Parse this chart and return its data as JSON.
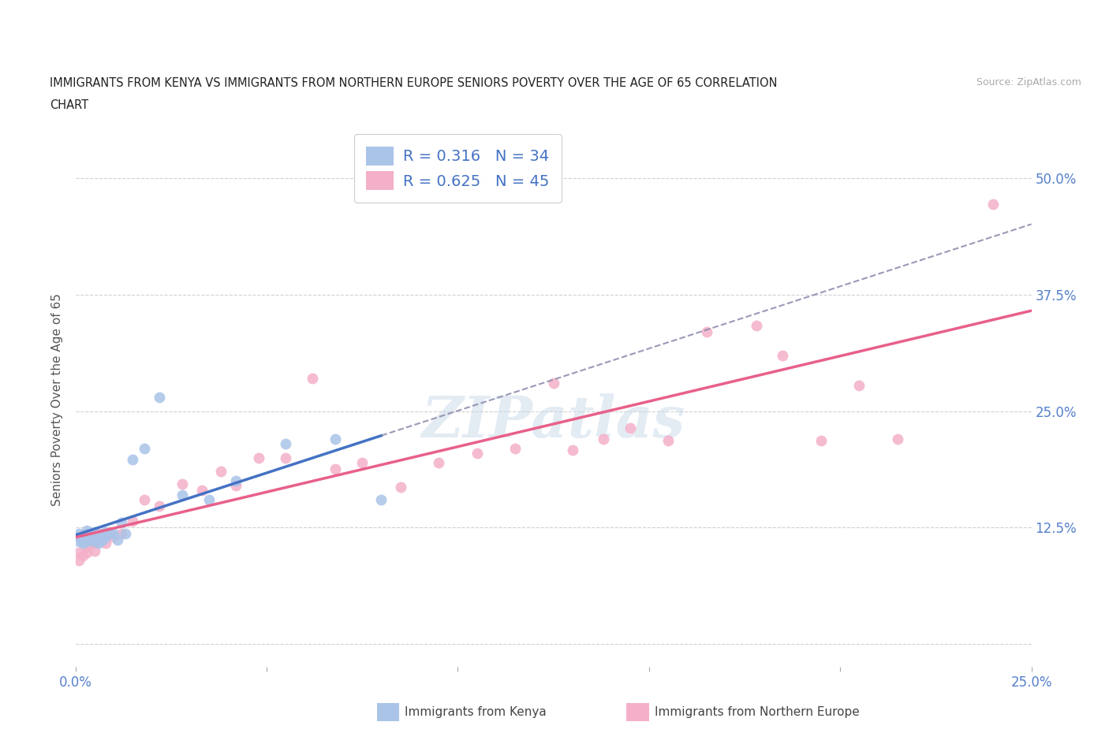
{
  "title_line1": "IMMIGRANTS FROM KENYA VS IMMIGRANTS FROM NORTHERN EUROPE SENIORS POVERTY OVER THE AGE OF 65 CORRELATION",
  "title_line2": "CHART",
  "source": "Source: ZipAtlas.com",
  "ylabel": "Seniors Poverty Over the Age of 65",
  "xlim": [
    0.0,
    0.25
  ],
  "ylim": [
    -0.025,
    0.55
  ],
  "xtick_positions": [
    0.0,
    0.05,
    0.1,
    0.15,
    0.2,
    0.25
  ],
  "xtick_labels": [
    "0.0%",
    "",
    "",
    "",
    "",
    "25.0%"
  ],
  "ytick_positions": [
    0.0,
    0.125,
    0.25,
    0.375,
    0.5
  ],
  "ytick_labels": [
    "",
    "12.5%",
    "25.0%",
    "37.5%",
    "50.0%"
  ],
  "kenya_color": "#aac4e8",
  "ne_color": "#f4b0c8",
  "kenya_line_color": "#4472c4",
  "ne_line_color": "#e8608a",
  "dash_color": "#8888aa",
  "R_kenya": 0.316,
  "N_kenya": 34,
  "R_ne": 0.625,
  "N_ne": 45,
  "watermark": "ZIPatlas",
  "background_color": "#ffffff",
  "grid_color": "#cccccc",
  "kenya_x": [
    0.001,
    0.001,
    0.001,
    0.002,
    0.002,
    0.002,
    0.003,
    0.003,
    0.003,
    0.004,
    0.004,
    0.005,
    0.005,
    0.005,
    0.006,
    0.006,
    0.007,
    0.007,
    0.008,
    0.008,
    0.009,
    0.01,
    0.011,
    0.012,
    0.013,
    0.015,
    0.018,
    0.022,
    0.028,
    0.035,
    0.042,
    0.055,
    0.068,
    0.08
  ],
  "kenya_y": [
    0.11,
    0.115,
    0.118,
    0.108,
    0.112,
    0.115,
    0.11,
    0.118,
    0.122,
    0.112,
    0.118,
    0.11,
    0.115,
    0.12,
    0.108,
    0.115,
    0.112,
    0.118,
    0.115,
    0.12,
    0.118,
    0.118,
    0.112,
    0.13,
    0.118,
    0.198,
    0.21,
    0.265,
    0.16,
    0.155,
    0.175,
    0.215,
    0.22,
    0.155
  ],
  "ne_x": [
    0.001,
    0.001,
    0.002,
    0.003,
    0.003,
    0.004,
    0.004,
    0.005,
    0.005,
    0.006,
    0.006,
    0.007,
    0.008,
    0.008,
    0.009,
    0.01,
    0.012,
    0.015,
    0.018,
    0.022,
    0.028,
    0.033,
    0.038,
    0.042,
    0.048,
    0.055,
    0.062,
    0.068,
    0.075,
    0.085,
    0.095,
    0.105,
    0.115,
    0.125,
    0.13,
    0.138,
    0.145,
    0.155,
    0.165,
    0.178,
    0.185,
    0.195,
    0.205,
    0.215,
    0.24
  ],
  "ne_y": [
    0.09,
    0.098,
    0.095,
    0.098,
    0.105,
    0.108,
    0.112,
    0.1,
    0.108,
    0.112,
    0.118,
    0.112,
    0.108,
    0.118,
    0.12,
    0.115,
    0.118,
    0.132,
    0.155,
    0.148,
    0.172,
    0.165,
    0.185,
    0.17,
    0.2,
    0.2,
    0.285,
    0.188,
    0.195,
    0.168,
    0.195,
    0.205,
    0.21,
    0.28,
    0.208,
    0.22,
    0.232,
    0.218,
    0.335,
    0.342,
    0.31,
    0.218,
    0.278,
    0.22,
    0.472
  ]
}
